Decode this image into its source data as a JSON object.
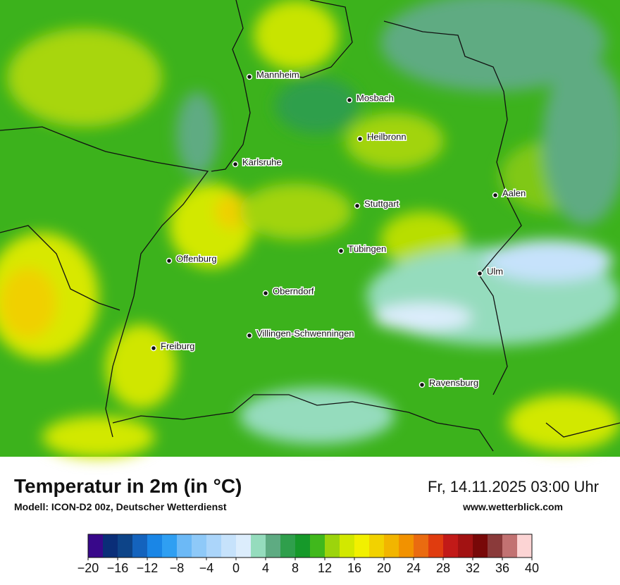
{
  "title": "Temperatur in 2m (in °C)",
  "subtitle": "Modell: ICON-D2 00z, Deutscher Wetterdienst",
  "datetime": "Fr, 14.11.2025 03:00 Uhr",
  "website": "www.wetterblick.com",
  "cities": [
    "Mannheim",
    "Mosbach",
    "Heilbronn",
    "Karlsruhe",
    "Stuttgart",
    "Aalen",
    "Tübingen",
    "Ulm",
    "Offenburg",
    "Oberndorf",
    "Villingen-Schwenningen",
    "Freiburg",
    "Ravensburg"
  ],
  "colorbar": {
    "lim": [
      -20,
      40
    ],
    "ticks": [
      {
        "value": -20,
        "label": "−20"
      },
      {
        "value": -16,
        "label": "−16"
      },
      {
        "value": -12,
        "label": "−12"
      },
      {
        "value": -8,
        "label": "−8"
      },
      {
        "value": -4,
        "label": "−4"
      },
      0,
      4,
      8,
      12,
      16,
      20,
      24,
      28,
      32,
      36,
      40
    ],
    "colors": [
      "#38088a",
      "#0a2e78",
      "#0d4488",
      "#1463bd",
      "#1a86e6",
      "#2f9ff2",
      "#6cb9f6",
      "#8ec9f8",
      "#abd5fa",
      "#c6e2fb",
      "#dcedfc",
      "#95dcbd",
      "#5eab82",
      "#2f9f4c",
      "#16992a",
      "#40b81c",
      "#9cd40c",
      "#d2e800",
      "#f2f000",
      "#f2d200",
      "#f2b500",
      "#f29200",
      "#ea6b10",
      "#e03c0f",
      "#c21a18",
      "#a21212",
      "#780808",
      "#8a3a3a",
      "#c27272",
      "#fcd4d4"
    ]
  }
}
